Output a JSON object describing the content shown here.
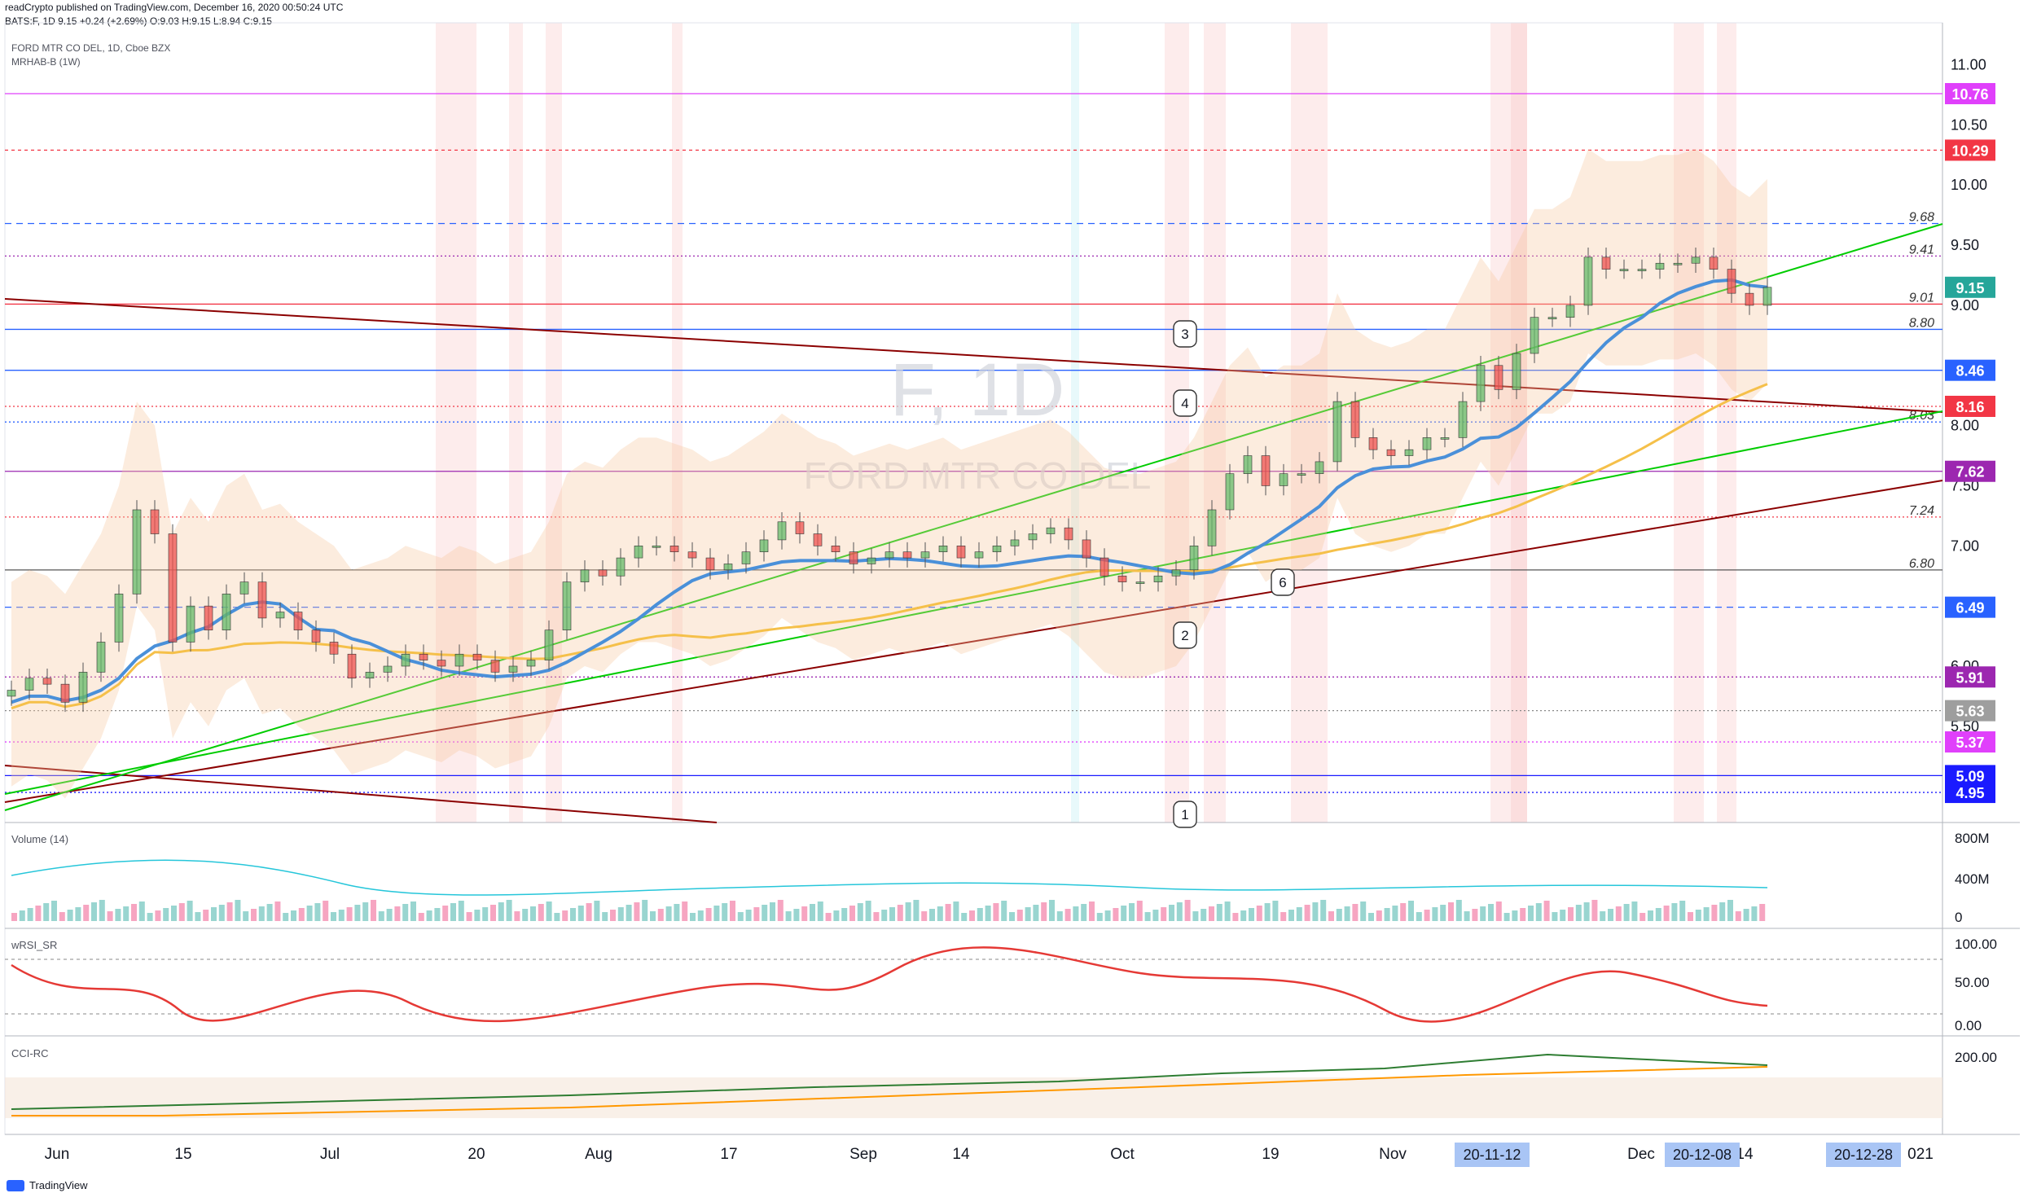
{
  "header": {
    "publisher_line": "readCrypto published on TradingView.com, December 16, 2020 00:50:24 UTC",
    "quote_line": "BATS:F, 1D  9.15  +0.24 (+2.69%)  O:9.03  H:9.15  L:8.94  C:9.15"
  },
  "symbol": {
    "title": "FORD MTR CO DEL, 1D, Cboe BZX",
    "indicator": "MRHAB-B (1W)",
    "watermark_ticker": "F, 1D",
    "watermark_name": "FORD MTR CO DEL"
  },
  "price_axis": {
    "ticks": [
      "11.00",
      "10.50",
      "10.00",
      "9.50",
      "9.00",
      "8.50",
      "8.00",
      "7.50",
      "7.00",
      "6.50",
      "6.00",
      "5.50"
    ],
    "tick_values": [
      11.0,
      10.5,
      10.0,
      9.5,
      9.0,
      8.5,
      8.0,
      7.5,
      7.0,
      6.5,
      6.0,
      5.5
    ],
    "range": [
      4.7,
      11.2
    ]
  },
  "price_badges": [
    {
      "label": "10.76",
      "value": 10.76,
      "color": "#e040fb"
    },
    {
      "label": "10.29",
      "value": 10.29,
      "color": "#f23645"
    },
    {
      "label": "9.15",
      "value": 9.15,
      "color": "#26a69a"
    },
    {
      "label": "8.46",
      "value": 8.46,
      "color": "#2962ff"
    },
    {
      "label": "8.16",
      "value": 8.16,
      "color": "#f23645"
    },
    {
      "label": "7.62",
      "value": 7.62,
      "color": "#9c27b0"
    },
    {
      "label": "6.49",
      "value": 6.49,
      "color": "#2962ff"
    },
    {
      "label": "5.91",
      "value": 5.91,
      "color": "#9c27b0"
    },
    {
      "label": "5.63",
      "value": 5.63,
      "color": "#9e9e9e"
    },
    {
      "label": "5.37",
      "value": 5.37,
      "color": "#e040fb"
    },
    {
      "label": "5.09",
      "value": 5.09,
      "color": "#1a1aff"
    },
    {
      "label": "4.95",
      "value": 4.95,
      "color": "#1a1aff"
    }
  ],
  "level_labels": [
    {
      "label": "9.68",
      "value": 9.68
    },
    {
      "label": "9.41",
      "value": 9.41
    },
    {
      "label": "9.01",
      "value": 9.01
    },
    {
      "label": "8.80",
      "value": 8.8
    },
    {
      "label": "8.03",
      "value": 8.03
    },
    {
      "label": "7.24",
      "value": 7.24
    },
    {
      "label": "6.80",
      "value": 6.8
    }
  ],
  "callouts": [
    "1",
    "2",
    "3",
    "4",
    "6"
  ],
  "time_axis": {
    "labels": [
      "Jun",
      "15",
      "Jul",
      "20",
      "Aug",
      "17",
      "Sep",
      "14",
      "Oct",
      "19",
      "Nov",
      "Dec",
      "14",
      "021"
    ],
    "highlighted": [
      "20-11-12",
      "20-12-08",
      "20-12-28"
    ]
  },
  "panes": {
    "volume": {
      "title": "Volume (14)",
      "ticks": [
        "800M",
        "400M",
        "0"
      ]
    },
    "rsi": {
      "title": "wRSI_SR",
      "ticks": [
        "100.00",
        "50.00",
        "0.00"
      ]
    },
    "cci": {
      "title": "CCI-RC",
      "ticks": [
        "200.00"
      ]
    }
  },
  "footer": {
    "brand": "TradingView"
  },
  "chart_data": {
    "type": "candlestick",
    "symbol": "BATS:F",
    "interval": "1D",
    "last": {
      "open": 9.03,
      "high": 9.15,
      "low": 8.94,
      "close": 9.15,
      "change": 0.24,
      "change_pct": 2.69
    },
    "closes": [
      5.8,
      5.9,
      5.85,
      5.7,
      5.95,
      6.2,
      6.6,
      7.3,
      7.1,
      6.2,
      6.5,
      6.3,
      6.6,
      6.7,
      6.4,
      6.45,
      6.3,
      6.2,
      6.1,
      5.9,
      5.95,
      6.0,
      6.1,
      6.05,
      6.0,
      6.1,
      6.05,
      5.95,
      6.0,
      6.05,
      6.3,
      6.7,
      6.8,
      6.75,
      6.9,
      7.0,
      7.0,
      6.95,
      6.9,
      6.8,
      6.85,
      6.95,
      7.05,
      7.2,
      7.1,
      7.0,
      6.95,
      6.85,
      6.9,
      6.95,
      6.9,
      6.95,
      7.0,
      6.9,
      6.95,
      7.0,
      7.05,
      7.1,
      7.15,
      7.05,
      6.9,
      6.75,
      6.7,
      6.7,
      6.75,
      6.8,
      7.0,
      7.3,
      7.6,
      7.75,
      7.5,
      7.6,
      7.6,
      7.7,
      8.2,
      7.9,
      7.8,
      7.75,
      7.8,
      7.9,
      7.9,
      8.2,
      8.5,
      8.3,
      8.6,
      8.9,
      8.9,
      9.0,
      9.4,
      9.3,
      9.3,
      9.3,
      9.35,
      9.35,
      9.4,
      9.3,
      9.1,
      9.0,
      9.15
    ],
    "volume_range": [
      0,
      800000000
    ],
    "rsi_range": [
      0,
      100
    ]
  }
}
